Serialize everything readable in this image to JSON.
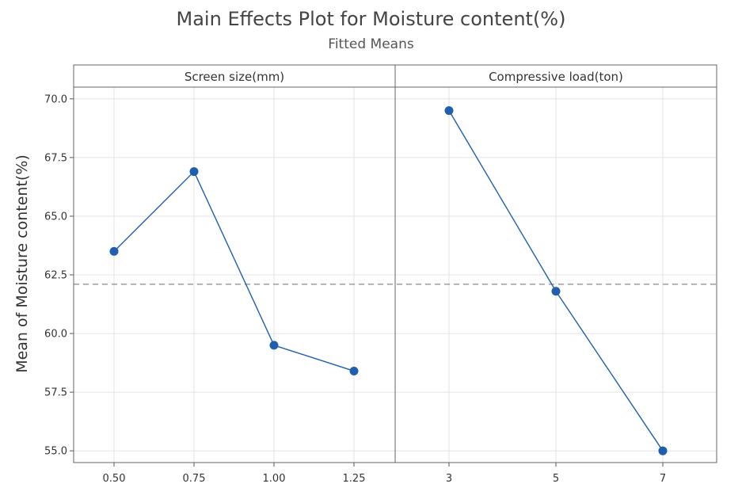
{
  "chart_data": {
    "type": "line",
    "title": "Main Effects Plot for Moisture content(%)",
    "subtitle": "Fitted Means",
    "ylabel": "Mean of Moisture content(%)",
    "ylim": [
      54.5,
      70.5
    ],
    "yticks": [
      "55.0",
      "57.5",
      "60.0",
      "62.5",
      "65.0",
      "67.5",
      "70.0"
    ],
    "reference_line": 62.1,
    "grid": true,
    "line_color": "#1f5fae",
    "reference_color": "#888888",
    "panels": [
      {
        "label": "Screen size(mm)",
        "x_labels": [
          "0.50",
          "0.75",
          "1.00",
          "1.25"
        ],
        "values": [
          63.5,
          66.9,
          59.5,
          58.4
        ]
      },
      {
        "label": "Compressive load(ton)",
        "x_labels": [
          "3",
          "5",
          "7"
        ],
        "values": [
          69.5,
          61.8,
          55.0
        ]
      }
    ]
  }
}
